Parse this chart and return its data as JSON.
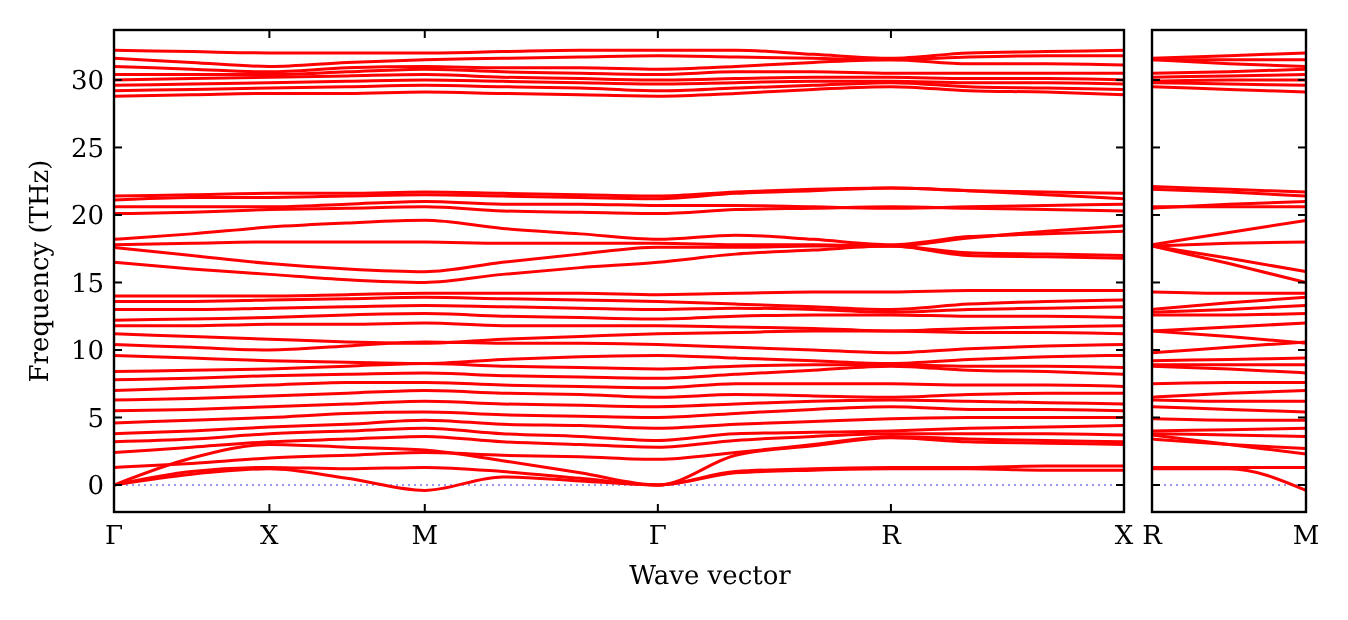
{
  "chart_data": [
    {
      "type": "line",
      "xlabel": "Wave vector",
      "ylabel": "Frequency (THz)",
      "categories": [
        "Γ",
        null,
        "X",
        null,
        "M",
        null,
        null,
        "Γ",
        null,
        null,
        "R",
        null,
        null,
        "X"
      ],
      "ylim": [
        -2,
        33.7
      ],
      "yticks": [
        0,
        5,
        10,
        15,
        20,
        25,
        30
      ],
      "grid": false,
      "marker": "none",
      "line_style": "solid",
      "ref_lines": [
        {
          "axis": "y",
          "value": 0,
          "color": "#7777ee",
          "line_style": "dotted"
        }
      ],
      "series": [
        {
          "color": "#ff0000",
          "values": [
            28.8,
            28.9,
            29.0,
            29.0,
            29.1,
            29.0,
            28.9,
            28.8,
            29.0,
            29.3,
            29.5,
            29.2,
            29.1,
            28.9
          ]
        },
        {
          "color": "#ff0000",
          "values": [
            29.2,
            29.3,
            29.4,
            29.5,
            29.6,
            29.5,
            29.4,
            29.2,
            29.4,
            29.6,
            29.8,
            29.5,
            29.4,
            29.3
          ]
        },
        {
          "color": "#ff0000",
          "values": [
            29.6,
            29.7,
            29.8,
            29.9,
            30.0,
            29.9,
            29.8,
            29.7,
            29.8,
            29.9,
            29.9,
            29.8,
            29.8,
            29.7
          ]
        },
        {
          "color": "#ff0000",
          "values": [
            30.0,
            30.1,
            30.2,
            30.3,
            30.4,
            30.2,
            30.1,
            30.0,
            30.1,
            30.2,
            30.2,
            30.1,
            30.1,
            30.0
          ]
        },
        {
          "color": "#ff0000",
          "values": [
            30.4,
            30.4,
            30.4,
            30.6,
            30.8,
            30.6,
            30.5,
            30.4,
            30.6,
            30.6,
            30.5,
            30.5,
            30.5,
            30.5
          ]
        },
        {
          "color": "#ff0000",
          "values": [
            31.0,
            30.8,
            30.6,
            30.9,
            31.0,
            30.9,
            30.9,
            30.8,
            31.0,
            31.3,
            31.5,
            31.2,
            31.2,
            31.1
          ]
        },
        {
          "color": "#ff0000",
          "values": [
            31.6,
            31.3,
            31.0,
            31.3,
            31.5,
            31.6,
            31.7,
            31.8,
            31.7,
            31.6,
            31.5,
            31.7,
            31.8,
            31.8
          ]
        },
        {
          "color": "#ff0000",
          "values": [
            32.2,
            32.1,
            32.0,
            32.0,
            32.0,
            32.1,
            32.2,
            32.2,
            32.2,
            31.9,
            31.6,
            32.0,
            32.1,
            32.2
          ]
        },
        {
          "color": "#ff0000",
          "values": [
            16.5,
            16.0,
            15.6,
            15.2,
            15.0,
            15.6,
            16.1,
            16.5,
            17.1,
            17.4,
            17.7,
            17.0,
            16.9,
            16.8
          ]
        },
        {
          "color": "#ff0000",
          "values": [
            17.6,
            17.0,
            16.4,
            16.0,
            15.8,
            16.5,
            17.1,
            17.6,
            17.6,
            17.7,
            17.7,
            17.2,
            17.1,
            17.0
          ]
        },
        {
          "color": "#ff0000",
          "values": [
            17.8,
            17.9,
            18.0,
            18.0,
            18.0,
            17.9,
            17.9,
            17.9,
            17.8,
            17.8,
            17.7,
            18.3,
            18.8,
            19.2
          ]
        },
        {
          "color": "#ff0000",
          "values": [
            18.2,
            18.6,
            19.1,
            19.4,
            19.6,
            19.0,
            18.6,
            18.2,
            18.5,
            18.2,
            17.8,
            18.4,
            18.6,
            18.8
          ]
        },
        {
          "color": "#ff0000",
          "values": [
            20.1,
            20.2,
            20.4,
            20.5,
            20.6,
            20.3,
            20.2,
            20.1,
            20.4,
            20.5,
            20.6,
            20.5,
            20.4,
            20.3
          ]
        },
        {
          "color": "#ff0000",
          "values": [
            20.6,
            20.6,
            20.6,
            20.8,
            21.0,
            20.8,
            20.8,
            20.7,
            20.7,
            20.6,
            20.5,
            20.6,
            20.7,
            20.8
          ]
        },
        {
          "color": "#ff0000",
          "values": [
            21.1,
            21.3,
            21.3,
            21.4,
            21.5,
            21.4,
            21.3,
            21.2,
            21.6,
            21.8,
            22.0,
            21.8,
            21.5,
            21.2
          ]
        },
        {
          "color": "#ff0000",
          "values": [
            21.4,
            21.5,
            21.6,
            21.6,
            21.7,
            21.6,
            21.5,
            21.4,
            21.7,
            21.9,
            22.0,
            21.8,
            21.7,
            21.6
          ]
        },
        {
          "color": "#ff0000",
          "values": [
            0,
            0.8,
            1.2,
            0.5,
            -0.4,
            0.6,
            0.3,
            0,
            0.9,
            1.1,
            1.2,
            1.2,
            1.1,
            1.1
          ]
        },
        {
          "color": "#ff0000",
          "values": [
            0,
            1.0,
            1.3,
            1.2,
            1.3,
            1.0,
            0.5,
            0,
            1.0,
            1.2,
            1.3,
            1.3,
            1.4,
            1.4
          ]
        },
        {
          "color": "#ff0000",
          "values": [
            0,
            2.0,
            3.0,
            2.8,
            2.6,
            1.8,
            0.9,
            0,
            2.2,
            2.9,
            3.5,
            3.2,
            3.1,
            3.0
          ]
        },
        {
          "color": "#ff0000",
          "values": [
            1.3,
            1.6,
            2.0,
            2.2,
            2.4,
            2.2,
            2.1,
            1.9,
            2.4,
            3.0,
            3.6,
            3.4,
            3.3,
            3.2
          ]
        },
        {
          "color": "#ff0000",
          "values": [
            2.4,
            2.8,
            3.2,
            3.4,
            3.6,
            3.2,
            3.0,
            2.8,
            3.3,
            3.6,
            3.8,
            3.8,
            3.8,
            3.7
          ]
        },
        {
          "color": "#ff0000",
          "values": [
            3.2,
            3.4,
            3.8,
            4.0,
            4.2,
            3.8,
            3.6,
            3.3,
            3.8,
            3.9,
            4.0,
            4.2,
            4.3,
            4.4
          ]
        },
        {
          "color": "#ff0000",
          "values": [
            3.8,
            4.0,
            4.3,
            4.5,
            4.8,
            4.5,
            4.4,
            4.2,
            4.5,
            4.7,
            4.9,
            5.0,
            5.0,
            5.0
          ]
        },
        {
          "color": "#ff0000",
          "values": [
            4.6,
            4.8,
            5.0,
            5.3,
            5.4,
            5.2,
            5.1,
            5.0,
            5.3,
            5.6,
            5.8,
            5.6,
            5.6,
            5.5
          ]
        },
        {
          "color": "#ff0000",
          "values": [
            5.5,
            5.6,
            5.8,
            6.0,
            6.2,
            6.0,
            5.9,
            5.8,
            6.0,
            6.2,
            6.3,
            6.2,
            6.1,
            6.0
          ]
        },
        {
          "color": "#ff0000",
          "values": [
            6.3,
            6.4,
            6.6,
            6.8,
            7.0,
            6.8,
            6.7,
            6.5,
            6.7,
            6.6,
            6.5,
            6.7,
            6.8,
            6.8
          ]
        },
        {
          "color": "#ff0000",
          "values": [
            7.0,
            7.2,
            7.4,
            7.6,
            7.6,
            7.4,
            7.3,
            7.2,
            7.5,
            7.5,
            7.5,
            7.4,
            7.4,
            7.3
          ]
        },
        {
          "color": "#ff0000",
          "values": [
            7.8,
            7.9,
            8.1,
            8.2,
            8.3,
            8.1,
            8.0,
            7.9,
            8.2,
            8.5,
            8.8,
            8.5,
            8.4,
            8.2
          ]
        },
        {
          "color": "#ff0000",
          "values": [
            8.4,
            8.5,
            8.6,
            8.8,
            9.0,
            8.8,
            8.7,
            8.6,
            8.8,
            8.9,
            8.9,
            8.8,
            8.8,
            8.7
          ]
        },
        {
          "color": "#ff0000",
          "values": [
            9.6,
            9.4,
            9.2,
            9.1,
            9.0,
            9.3,
            9.5,
            9.6,
            9.4,
            9.2,
            9.0,
            9.3,
            9.5,
            9.6
          ]
        },
        {
          "color": "#ff0000",
          "values": [
            10.4,
            10.2,
            10.0,
            10.3,
            10.6,
            10.5,
            10.5,
            10.4,
            10.2,
            10.0,
            9.8,
            10.1,
            10.3,
            10.4
          ]
        },
        {
          "color": "#ff0000",
          "values": [
            11.2,
            11.0,
            10.8,
            10.6,
            10.5,
            10.8,
            11.0,
            11.2,
            11.3,
            11.4,
            11.4,
            11.3,
            11.3,
            11.2
          ]
        },
        {
          "color": "#ff0000",
          "values": [
            11.8,
            11.8,
            11.9,
            11.9,
            12.0,
            11.8,
            11.8,
            11.8,
            11.7,
            11.6,
            11.4,
            11.6,
            11.7,
            11.8
          ]
        },
        {
          "color": "#ff0000",
          "values": [
            12.2,
            12.3,
            12.4,
            12.6,
            12.7,
            12.5,
            12.4,
            12.3,
            12.5,
            12.6,
            12.6,
            12.5,
            12.5,
            12.4
          ]
        },
        {
          "color": "#ff0000",
          "values": [
            13.0,
            13.0,
            13.1,
            13.2,
            13.3,
            13.2,
            13.1,
            13.0,
            13.1,
            13.0,
            12.8,
            13.0,
            13.1,
            13.2
          ]
        },
        {
          "color": "#ff0000",
          "values": [
            13.6,
            13.6,
            13.7,
            13.8,
            13.9,
            13.8,
            13.7,
            13.6,
            13.4,
            13.2,
            13.0,
            13.4,
            13.6,
            13.7
          ]
        },
        {
          "color": "#ff0000",
          "values": [
            14.0,
            14.0,
            14.0,
            14.1,
            14.2,
            14.2,
            14.2,
            14.1,
            14.2,
            14.3,
            14.3,
            14.4,
            14.4,
            14.4
          ]
        }
      ]
    },
    {
      "type": "line",
      "categories": [
        "R",
        null,
        "M"
      ],
      "ylim": [
        -2,
        33.7
      ],
      "tick_labels": "x",
      "yticks": [
        0,
        5,
        10,
        15,
        20,
        25,
        30
      ],
      "grid": false,
      "marker": "none",
      "line_style": "solid",
      "ref_lines": [
        {
          "axis": "y",
          "value": 0,
          "color": "#7777ee",
          "line_style": "dotted"
        }
      ],
      "series": [
        {
          "color": "#ff0000",
          "values": [
            29.5,
            29.3,
            29.1
          ]
        },
        {
          "color": "#ff0000",
          "values": [
            29.8,
            29.7,
            29.6
          ]
        },
        {
          "color": "#ff0000",
          "values": [
            29.9,
            30.0,
            30.0
          ]
        },
        {
          "color": "#ff0000",
          "values": [
            30.2,
            30.3,
            30.4
          ]
        },
        {
          "color": "#ff0000",
          "values": [
            30.5,
            30.6,
            30.8
          ]
        },
        {
          "color": "#ff0000",
          "values": [
            31.5,
            31.2,
            31.0
          ]
        },
        {
          "color": "#ff0000",
          "values": [
            31.5,
            31.5,
            31.5
          ]
        },
        {
          "color": "#ff0000",
          "values": [
            31.6,
            31.8,
            32.0
          ]
        },
        {
          "color": "#ff0000",
          "values": [
            17.7,
            16.4,
            15.0
          ]
        },
        {
          "color": "#ff0000",
          "values": [
            17.7,
            16.8,
            15.8
          ]
        },
        {
          "color": "#ff0000",
          "values": [
            17.7,
            17.9,
            18.0
          ]
        },
        {
          "color": "#ff0000",
          "values": [
            17.8,
            18.7,
            19.6
          ]
        },
        {
          "color": "#ff0000",
          "values": [
            20.6,
            20.6,
            20.6
          ]
        },
        {
          "color": "#ff0000",
          "values": [
            20.5,
            20.8,
            21.0
          ]
        },
        {
          "color": "#ff0000",
          "values": [
            21.9,
            21.7,
            21.4
          ]
        },
        {
          "color": "#ff0000",
          "values": [
            22.1,
            21.9,
            21.7
          ]
        },
        {
          "color": "#ff0000",
          "values": [
            1.2,
            1.2,
            -0.4
          ]
        },
        {
          "color": "#ff0000",
          "values": [
            1.3,
            1.3,
            1.3
          ]
        },
        {
          "color": "#ff0000",
          "values": [
            3.4,
            3.0,
            2.7
          ]
        },
        {
          "color": "#ff0000",
          "values": [
            3.7,
            3.0,
            2.3
          ]
        },
        {
          "color": "#ff0000",
          "values": [
            3.8,
            3.7,
            3.6
          ]
        },
        {
          "color": "#ff0000",
          "values": [
            4.0,
            4.1,
            4.2
          ]
        },
        {
          "color": "#ff0000",
          "values": [
            4.9,
            4.8,
            4.8
          ]
        },
        {
          "color": "#ff0000",
          "values": [
            5.8,
            5.6,
            5.4
          ]
        },
        {
          "color": "#ff0000",
          "values": [
            6.3,
            6.2,
            6.2
          ]
        },
        {
          "color": "#ff0000",
          "values": [
            6.5,
            6.8,
            7.0
          ]
        },
        {
          "color": "#ff0000",
          "values": [
            7.5,
            7.6,
            7.6
          ]
        },
        {
          "color": "#ff0000",
          "values": [
            8.8,
            8.6,
            8.3
          ]
        },
        {
          "color": "#ff0000",
          "values": [
            8.9,
            8.9,
            8.9
          ]
        },
        {
          "color": "#ff0000",
          "values": [
            9.2,
            9.3,
            9.4
          ]
        },
        {
          "color": "#ff0000",
          "values": [
            9.8,
            10.2,
            10.6
          ]
        },
        {
          "color": "#ff0000",
          "values": [
            11.4,
            11.0,
            10.5
          ]
        },
        {
          "color": "#ff0000",
          "values": [
            11.4,
            11.7,
            12.0
          ]
        },
        {
          "color": "#ff0000",
          "values": [
            12.6,
            12.6,
            12.7
          ]
        },
        {
          "color": "#ff0000",
          "values": [
            12.8,
            13.0,
            13.3
          ]
        },
        {
          "color": "#ff0000",
          "values": [
            13.0,
            13.5,
            13.9
          ]
        },
        {
          "color": "#ff0000",
          "values": [
            14.3,
            14.2,
            14.2
          ]
        }
      ]
    }
  ]
}
